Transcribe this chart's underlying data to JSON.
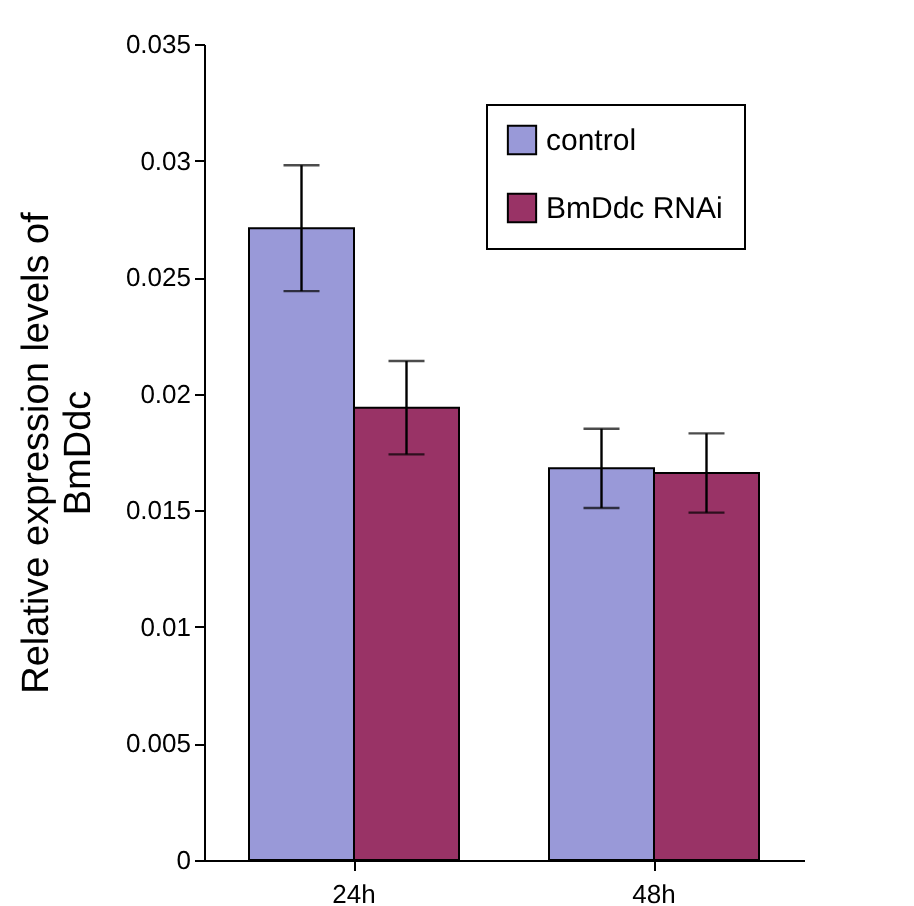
{
  "chart_data": {
    "type": "bar",
    "ylabel": "Relative expression levels of BmDdc",
    "categories": [
      "24h",
      "48h"
    ],
    "series": [
      {
        "name": "control",
        "color": "#9999d8",
        "values": [
          0.0271,
          0.0168
        ],
        "errors": [
          0.0027,
          0.0017
        ]
      },
      {
        "name": "BmDdc RNAi",
        "color": "#993366",
        "values": [
          0.0194,
          0.0166
        ],
        "errors": [
          0.002,
          0.0017
        ]
      }
    ],
    "ylim": [
      0,
      0.035
    ],
    "yticks": [
      0,
      0.005,
      0.01,
      0.015,
      0.02,
      0.025,
      0.03,
      0.035
    ],
    "grid": false,
    "legend": "top right"
  }
}
